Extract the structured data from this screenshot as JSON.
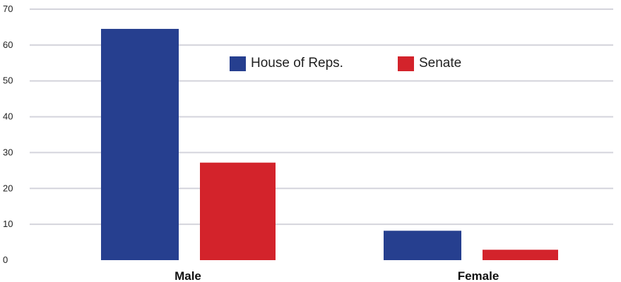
{
  "chart_data": {
    "type": "bar",
    "categories": [
      "Male",
      "Female"
    ],
    "series": [
      {
        "name": "House of Reps.",
        "values": [
          64.5,
          8.2
        ],
        "color": "#263f8f"
      },
      {
        "name": "Senate",
        "values": [
          27.2,
          2.9
        ],
        "color": "#d3232b"
      }
    ],
    "yticks": [
      "0",
      "10",
      "20",
      "30",
      "40",
      "50",
      "60",
      "70"
    ],
    "ylim": [
      0,
      70
    ],
    "grid": true,
    "legend_position": "top-center"
  }
}
